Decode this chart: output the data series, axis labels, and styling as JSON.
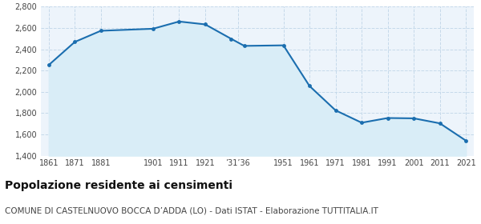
{
  "years": [
    1861,
    1871,
    1881,
    1901,
    1911,
    1921,
    1931,
    1936,
    1951,
    1961,
    1971,
    1981,
    1991,
    2001,
    2011,
    2021
  ],
  "population": [
    2252,
    2469,
    2574,
    2593,
    2661,
    2634,
    2498,
    2432,
    2437,
    2055,
    1826,
    1710,
    1754,
    1751,
    1704,
    1541
  ],
  "line_color": "#1b6eaf",
  "fill_color": "#d9edf7",
  "marker_color": "#1b6eaf",
  "bg_color": "#edf4fb",
  "grid_color": "#c5d9ea",
  "ylim": [
    1400,
    2800
  ],
  "yticks": [
    1400,
    1600,
    1800,
    2000,
    2200,
    2400,
    2600,
    2800
  ],
  "ytick_labels": [
    "1,400",
    "1,600",
    "1,800",
    "2,000",
    "2,200",
    "2,400",
    "2,600",
    "2,800"
  ],
  "xtick_positions": [
    1861,
    1871,
    1881,
    1901,
    1911,
    1921,
    1933.5,
    1951,
    1961,
    1971,
    1981,
    1991,
    2001,
    2011,
    2021
  ],
  "xtick_labels": [
    "1861",
    "1871",
    "1881",
    "1901",
    "1911",
    "1921",
    "’31’36",
    "1951",
    "1961",
    "1971",
    "1981",
    "1991",
    "2001",
    "2011",
    "2021"
  ],
  "title": "Popolazione residente ai censimenti",
  "subtitle": "COMUNE DI CASTELNUOVO BOCCA D’ADDA (LO) - Dati ISTAT - Elaborazione TUTTITALIA.IT",
  "title_fontsize": 10,
  "subtitle_fontsize": 7.5
}
